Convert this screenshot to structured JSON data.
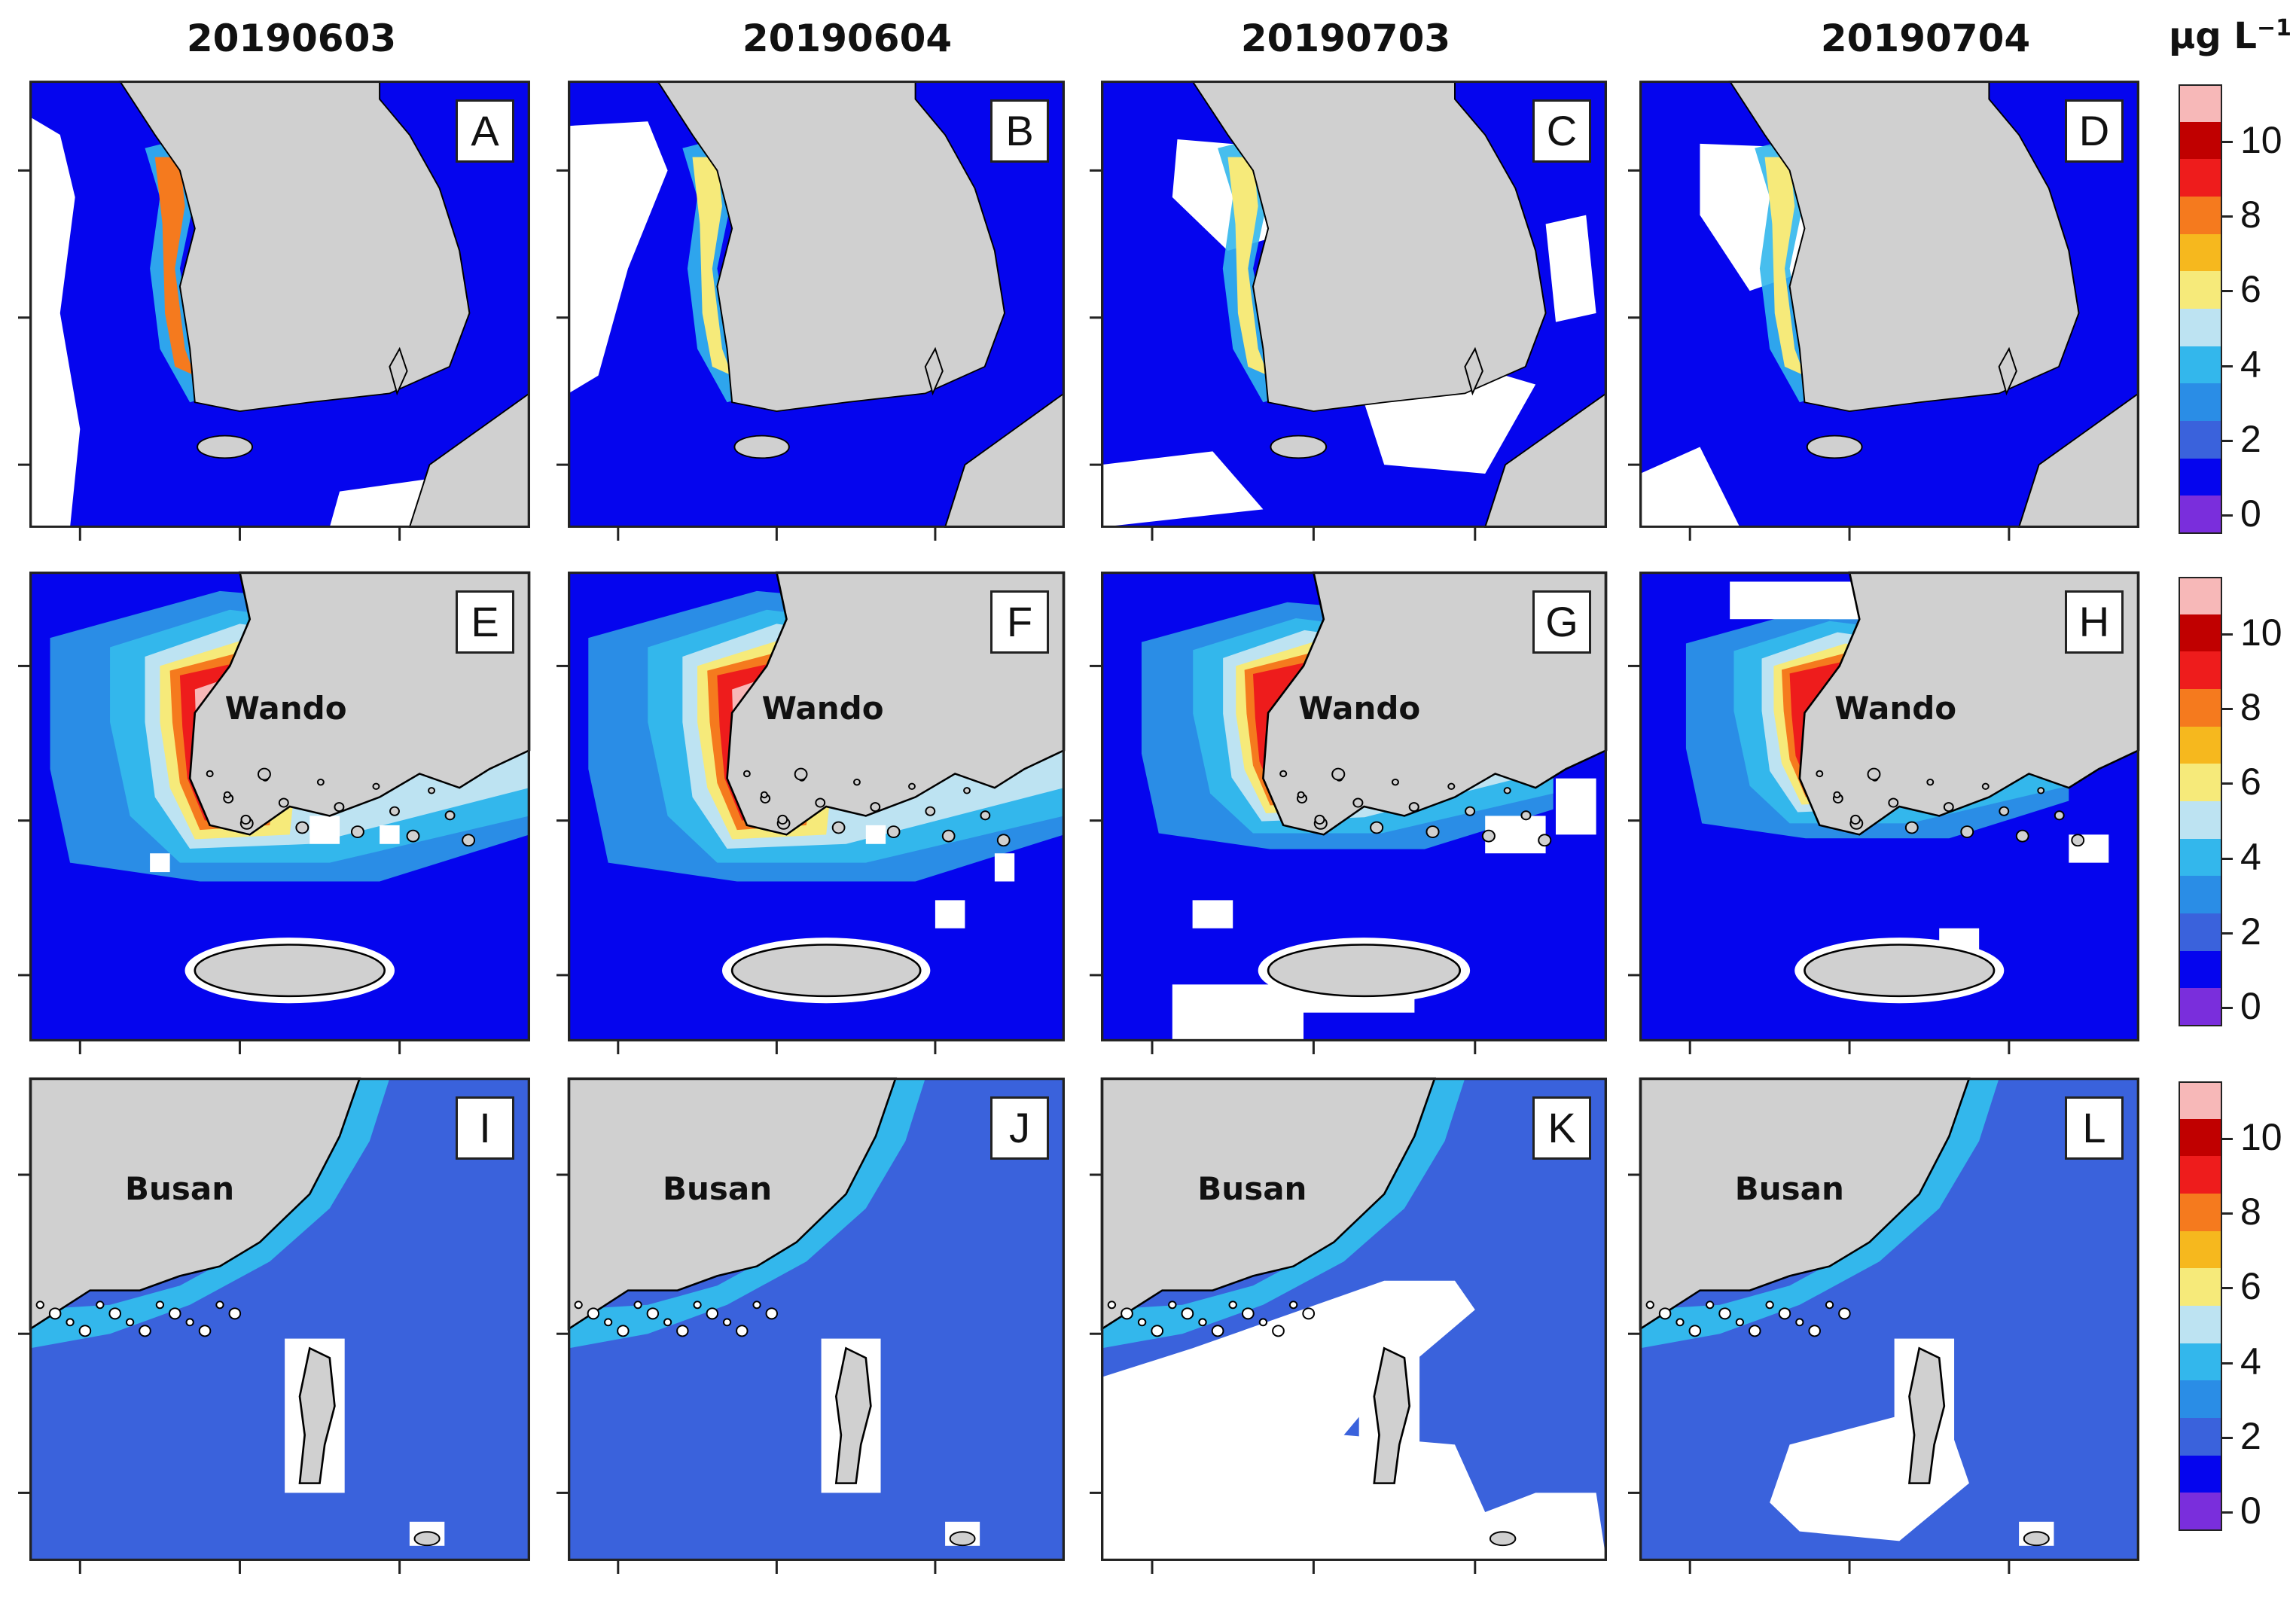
{
  "dates": [
    "20190603",
    "20190604",
    "20190703",
    "20190704"
  ],
  "unit": {
    "main": "µg L",
    "exponent": "−1"
  },
  "panel_letters": [
    "A",
    "B",
    "C",
    "D",
    "E",
    "F",
    "G",
    "H",
    "I",
    "J",
    "K",
    "L"
  ],
  "place_labels": {
    "row2": "Wando",
    "row3": "Busan"
  },
  "colorbar": {
    "ticks": [
      "10",
      "8",
      "6",
      "4",
      "2",
      "0"
    ],
    "colors": [
      "#f7b8b8",
      "#c00000",
      "#ee1c1c",
      "#f57a1e",
      "#f6b81e",
      "#f6ea7a",
      "#bde3f2",
      "#33b7ec",
      "#2a8de6",
      "#3a62dc",
      "#0505ee",
      "#7a2edc"
    ]
  },
  "colors": {
    "land": "#d0d0d0",
    "sea_low": "#0505ee",
    "sea_row3": "#3a62dc",
    "no_data": "#ffffff",
    "coast": "#000000"
  }
}
